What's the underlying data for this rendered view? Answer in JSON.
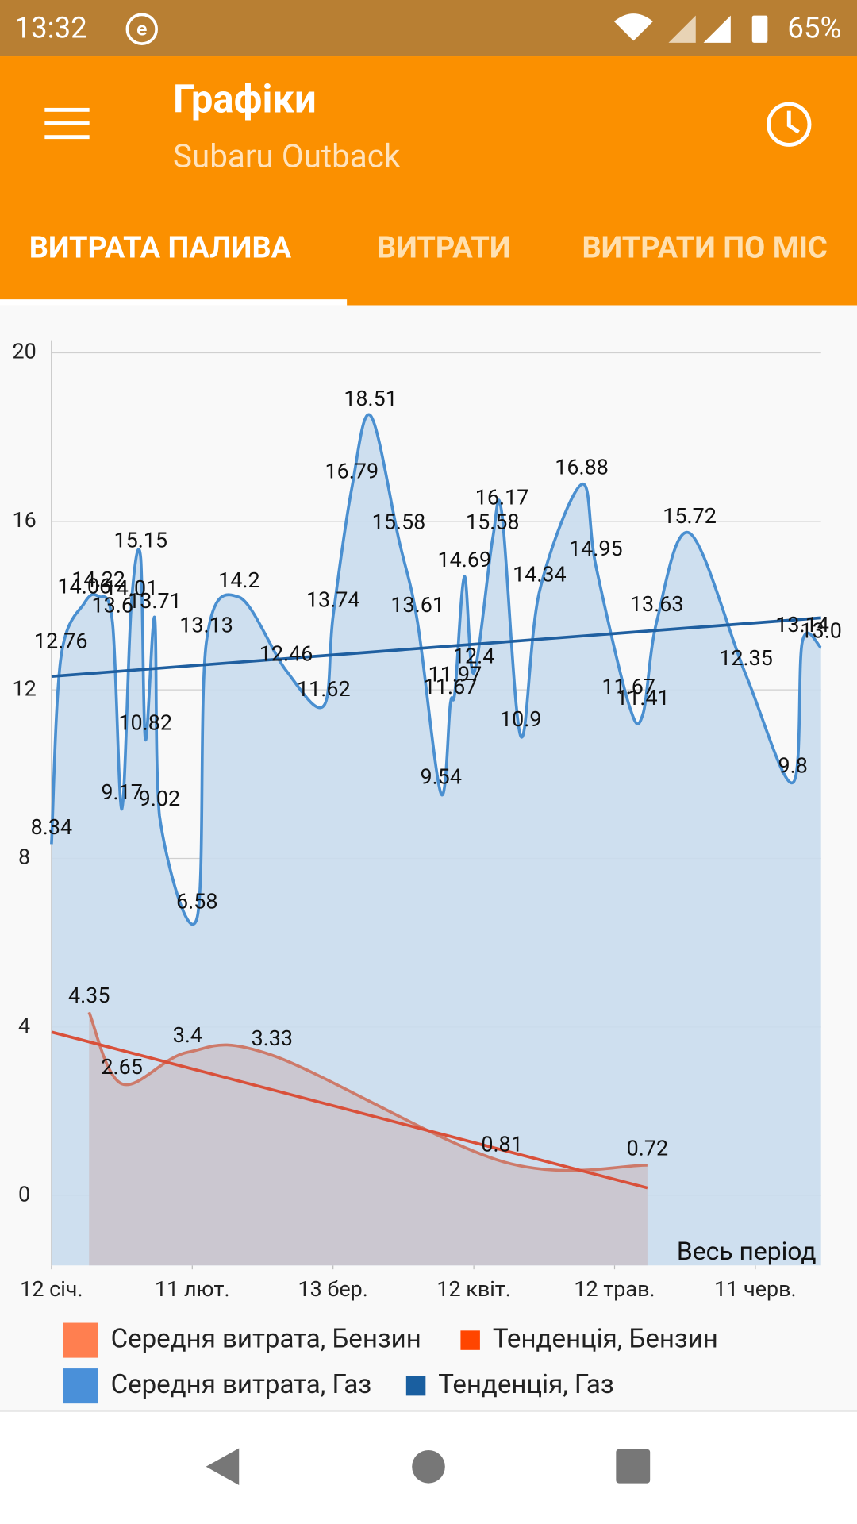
{
  "status_bar": {
    "time": "13:32",
    "battery": "65%"
  },
  "app_bar": {
    "title": "Графіки",
    "subtitle": "Subaru Outback"
  },
  "tabs": [
    "ВИТРАТА ПАЛИВА",
    "ВИТРАТИ",
    "ВИТРАТИ ПО МІС"
  ],
  "chart_data": {
    "type": "line",
    "annotation": "Весь період",
    "grid": true,
    "xlim": [
      12,
      176
    ],
    "xticks": [
      {
        "value": 12,
        "label": "12 січ."
      },
      {
        "value": 42,
        "label": "11 лют."
      },
      {
        "value": 72,
        "label": "13 бер."
      },
      {
        "value": 102,
        "label": "12 квіт."
      },
      {
        "value": 132,
        "label": "12 трав."
      },
      {
        "value": 162,
        "label": "11 черв."
      }
    ],
    "ylim": [
      -1.66,
      20.3
    ],
    "yticks": [
      0,
      4,
      8,
      12,
      16,
      20
    ],
    "series": [
      {
        "name": "Середня витрата, Бензин",
        "color": "#ff7f50",
        "line_color": "#cd7a6a",
        "fill": "#cbc4cc",
        "x": [
          20,
          27,
          41,
          59,
          108,
          139
        ],
        "values": [
          4.35,
          2.65,
          3.4,
          3.33,
          0.81,
          0.72
        ]
      },
      {
        "name": "Тенденція, Бензин",
        "color": "#ff4500",
        "line_color": "#d9503a",
        "x": [
          12,
          139
        ],
        "values": [
          3.88,
          0.18
        ]
      },
      {
        "name": "Середня витрата, Газ",
        "color": "#4a90d9",
        "line_color": "#4a8fd0",
        "fill": "#c9dced",
        "x": [
          12,
          14,
          19,
          22,
          25,
          27,
          29,
          31,
          32,
          34,
          35,
          43,
          45,
          52,
          62,
          70,
          72,
          76,
          80,
          86,
          90,
          95,
          97,
          98,
          100,
          102,
          106,
          108,
          112,
          116,
          125,
          128,
          135,
          138,
          141,
          148,
          160,
          170,
          172,
          176
        ],
        "values": [
          8.34,
          12.76,
          14.06,
          14.22,
          13.6,
          9.17,
          14.01,
          15.15,
          10.82,
          13.71,
          9.02,
          6.58,
          13.13,
          14.2,
          12.46,
          11.62,
          13.74,
          16.79,
          18.51,
          15.58,
          13.61,
          9.54,
          11.67,
          11.97,
          14.69,
          12.4,
          15.58,
          16.17,
          10.9,
          14.34,
          16.88,
          14.95,
          11.67,
          11.41,
          13.63,
          15.72,
          12.35,
          9.8,
          13.14,
          13
        ],
        "value_labels": [
          "8.34",
          "12.76",
          "14.06",
          "14.22",
          "13.6",
          "9.17",
          "14.01",
          "15.15",
          "10.82",
          "13.71",
          "9.02",
          "6.58",
          "13.13",
          "14.2",
          "12.46",
          "11.62",
          "13.74",
          "16.79",
          "18.51",
          "15.58",
          "13.61",
          "9.54",
          "11.67",
          "11.97",
          "14.69",
          "12.4",
          "15.58",
          "16.17",
          "10.9",
          "14.34",
          "16.88",
          "14.95",
          "11.67",
          "11.41",
          "13.63",
          "15.72",
          "12.35",
          "9.8",
          "13.14",
          "13.0"
        ]
      },
      {
        "name": "Тенденція, Газ",
        "color": "#1a5fa0",
        "line_color": "#1f5fa0",
        "x": [
          12,
          176
        ],
        "values": [
          12.32,
          13.71
        ]
      }
    ]
  }
}
